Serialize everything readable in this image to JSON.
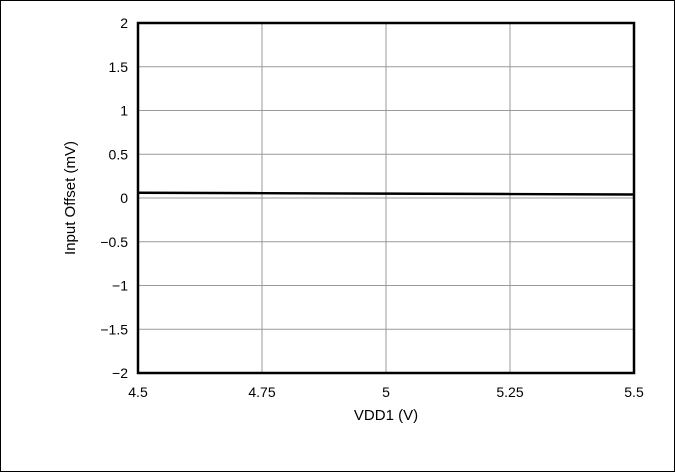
{
  "chart_data": {
    "type": "line",
    "title": "",
    "xlabel": "VDD1 (V)",
    "ylabel": "Input Offset (mV)",
    "xlim": [
      4.5,
      5.5
    ],
    "ylim": [
      -2,
      2
    ],
    "x_ticks": [
      4.5,
      4.75,
      5,
      5.25,
      5.5
    ],
    "x_tick_labels": [
      "4.5",
      "4.75",
      "5",
      "5.25",
      "5.5"
    ],
    "y_ticks": [
      2,
      1.5,
      1,
      0.5,
      0,
      -0.5,
      -1,
      -1.5,
      -2
    ],
    "y_tick_labels": [
      "2",
      "1.5",
      "1",
      "0.5",
      "0",
      "−0.5",
      "−1",
      "−1.5",
      "−2"
    ],
    "grid": true,
    "series": [
      {
        "x": [
          4.5,
          4.75,
          5,
          5.25,
          5.5
        ],
        "values": [
          0.06,
          0.055,
          0.05,
          0.045,
          0.04
        ],
        "color": "#000000"
      }
    ]
  }
}
